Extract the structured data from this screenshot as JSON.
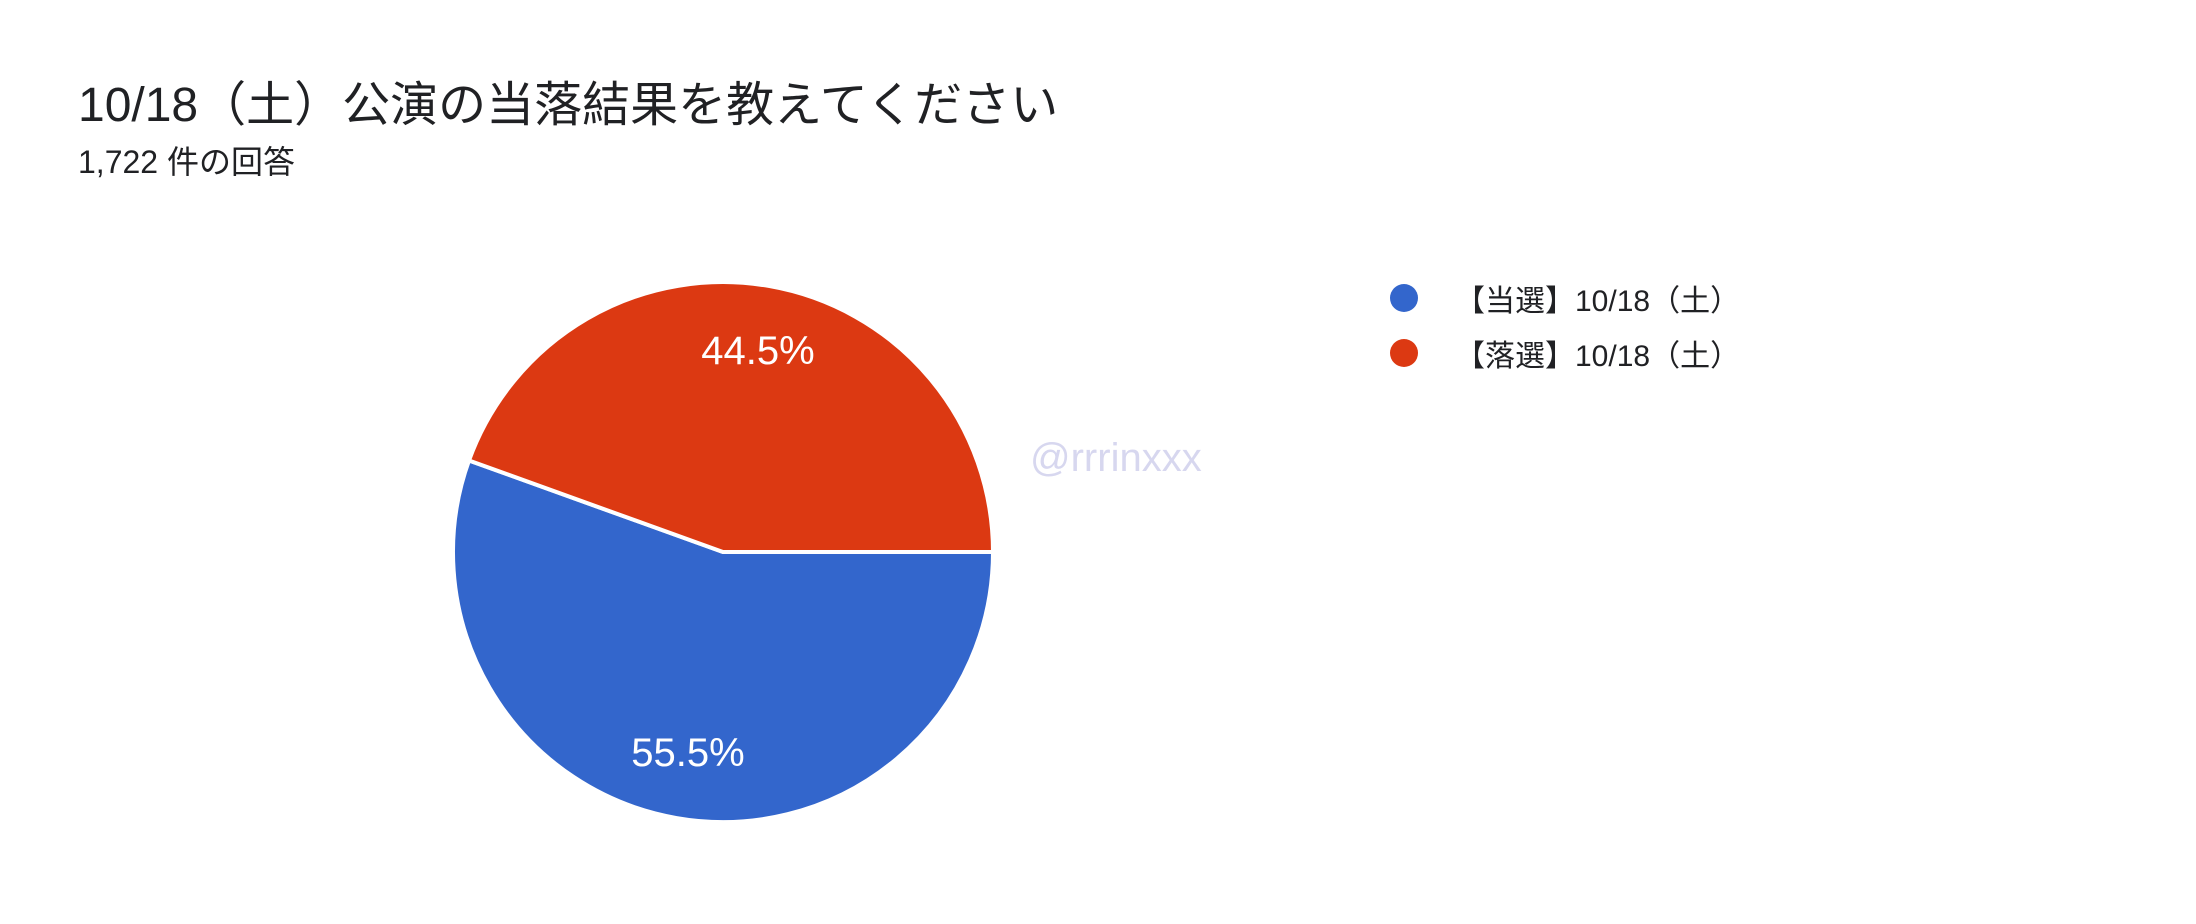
{
  "chart_data": {
    "type": "pie",
    "title": "10/18（土）公演の当落結果を教えてください",
    "subtitle": "1,722 件の回答",
    "slices": [
      {
        "label": "【当選】10/18（土）",
        "value_percent": 55.5,
        "color": "#3366cc"
      },
      {
        "label": "【落選】10/18（土）",
        "value_percent": 44.5,
        "color": "#dc3912"
      }
    ],
    "start_angle_deg": 0,
    "direction": "clockwise",
    "legend_position": "right",
    "slice_border_color": "#ffffff",
    "slice_label_color": "#ffffff",
    "watermark": "@rrrinxxx",
    "watermark_color": "#d7d7ef"
  }
}
